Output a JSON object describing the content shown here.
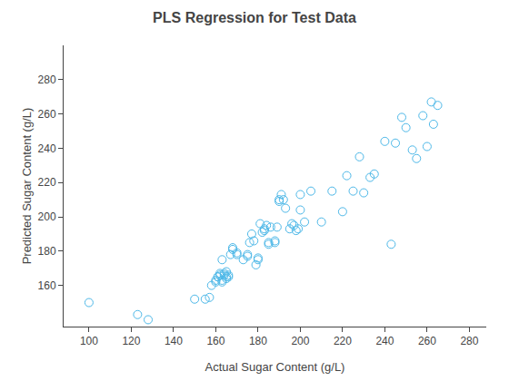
{
  "chart_data": {
    "type": "scatter",
    "title": "PLS Regression for Test Data",
    "xlabel": "Actual Sugar Content (g/L)",
    "ylabel": "Predicted Sugar Content (g/L)",
    "x": [
      100,
      123,
      128,
      150,
      155,
      157,
      158,
      160,
      160,
      161,
      161,
      162,
      162,
      163,
      163,
      163,
      164,
      164,
      165,
      165,
      165,
      166,
      166,
      167,
      168,
      168,
      170,
      170,
      173,
      175,
      175,
      176,
      177,
      178,
      179,
      180,
      180,
      181,
      182,
      183,
      183,
      184,
      185,
      185,
      186,
      188,
      188,
      189,
      190,
      190,
      191,
      192,
      193,
      195,
      196,
      197,
      198,
      199,
      200,
      200,
      202,
      205,
      210,
      215,
      220,
      222,
      225,
      228,
      230,
      233,
      235,
      240,
      243,
      245,
      248,
      250,
      253,
      255,
      258,
      260,
      262,
      263,
      265
    ],
    "values": [
      150,
      143,
      140,
      152,
      152,
      153,
      160,
      162,
      163,
      165,
      165,
      166,
      167,
      162,
      163,
      175,
      166,
      167,
      164,
      165,
      168,
      165,
      166,
      178,
      181,
      182,
      178,
      179,
      175,
      177,
      178,
      185,
      190,
      186,
      172,
      175,
      176,
      196,
      191,
      192,
      193,
      195,
      184,
      185,
      194,
      185,
      186,
      194,
      209,
      210,
      213,
      210,
      205,
      193,
      196,
      195,
      192,
      193,
      204,
      213,
      197,
      215,
      197,
      215,
      203,
      224,
      215,
      235,
      214,
      223,
      225,
      244,
      184,
      243,
      258,
      252,
      239,
      234,
      259,
      241,
      267,
      254,
      265
    ],
    "color": "#4db8e8",
    "marker": "circle-open",
    "xlim": [
      88,
      288
    ],
    "ylim": [
      136,
      300
    ],
    "xticks": [
      100,
      120,
      140,
      160,
      180,
      200,
      220,
      240,
      260,
      280
    ],
    "yticks": [
      160,
      180,
      200,
      220,
      240,
      260,
      280
    ],
    "grid": false
  }
}
